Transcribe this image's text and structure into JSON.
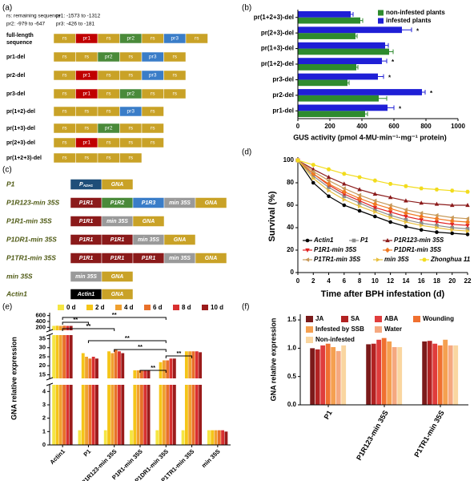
{
  "panel_labels": [
    "(a)",
    "(b)",
    "(c)",
    "(d)",
    "(e)",
    "(f)"
  ],
  "diagram_a": {
    "legend": [
      "rs: remaining sequence",
      "pr1: -1573 to -1312",
      "pr2: -979 to -647",
      "pr3: -426 to -181"
    ],
    "colors": {
      "rs": "#c9a227",
      "pr1": "#c00000",
      "pr2": "#4a8a3a",
      "pr3": "#3a7dc8"
    },
    "rows": [
      {
        "label": [
          "full-length",
          "sequence"
        ],
        "segments": [
          "rs",
          "pr1",
          "rs",
          "pr2",
          "rs",
          "pr3",
          "rs"
        ]
      },
      {
        "label": "pr1-del",
        "segments": [
          "rs",
          "rs",
          "pr2",
          "rs",
          "pr3",
          "rs"
        ]
      },
      {
        "label": "pr2-del",
        "segments": [
          "rs",
          "pr1",
          "rs",
          "rs",
          "pr3",
          "rs"
        ]
      },
      {
        "label": "pr3-del",
        "segments": [
          "rs",
          "pr1",
          "rs",
          "pr2",
          "rs",
          "rs"
        ]
      },
      {
        "label": "pr(1+2)-del",
        "segments": [
          "rs",
          "rs",
          "rs",
          "pr3",
          "rs"
        ]
      },
      {
        "label": "pr(1+3)-del",
        "segments": [
          "rs",
          "rs",
          "pr2",
          "rs",
          "rs"
        ]
      },
      {
        "label": "pr(2+3)-del",
        "segments": [
          "rs",
          "pr1",
          "rs",
          "rs",
          "rs"
        ]
      },
      {
        "label": "pr(1+2+3)-del",
        "segments": [
          "rs",
          "rs",
          "rs",
          "rs"
        ]
      }
    ]
  },
  "diagram_c": {
    "colors": {
      "GNA": "#c9a227",
      "P1R1": "#8b1a1a",
      "P1R2": "#4a8a3a",
      "P1R3": "#3a7dc8",
      "min 35S": "#9a9a9a",
      "Actin1": "#000000"
    },
    "rows": [
      {
        "label": "P1",
        "segments": [
          {
            "text": "P",
            "sub": "ADH1",
            "color": "#1f4e79"
          },
          "GNA"
        ]
      },
      {
        "label": "P1R123-min 35S",
        "segments": [
          "P1R1",
          "P1R2",
          "P1R3",
          "min 35S",
          "GNA"
        ]
      },
      {
        "label": "P1R1-min 35S",
        "segments": [
          "P1R1",
          "min 35S",
          "GNA"
        ]
      },
      {
        "label": "P1DR1-min 35S",
        "segments": [
          "P1R1",
          "P1R1",
          "min 35S",
          "GNA"
        ]
      },
      {
        "label": "P1TR1-min 35S",
        "segments": [
          "P1R1",
          "P1R1",
          "P1R1",
          "min 35S",
          "GNA"
        ]
      },
      {
        "label": "min 35S",
        "segments": [
          "min 35S",
          "GNA"
        ]
      },
      {
        "label": "Actin1",
        "segments": [
          "Actin1",
          "GNA"
        ]
      }
    ]
  },
  "chart_data": [
    {
      "type": "hbar",
      "categories": [
        "pr(1+2+3)-del",
        "pr(2+3)-del",
        "pr(1+3)-del",
        "pr(1+2)-del",
        "pr3-del",
        "pr2-del",
        "pr1-del"
      ],
      "series": [
        {
          "name": "non-infested plants",
          "color": "#2e8b2e",
          "values": [
            390,
            360,
            570,
            365,
            310,
            505,
            420
          ],
          "errors": [
            15,
            10,
            25,
            10,
            10,
            50,
            15
          ]
        },
        {
          "name": "infested plants",
          "color": "#1f1fd6",
          "values": [
            330,
            650,
            545,
            525,
            500,
            775,
            560
          ],
          "errors": [
            15,
            60,
            20,
            30,
            35,
            20,
            40
          ]
        }
      ],
      "xlim": [
        0,
        1000
      ],
      "xticks": [
        0,
        200,
        400,
        600,
        800,
        1000
      ],
      "xlabel": "GUS activity (pmol 4-MU·min⁻¹·mg⁻¹ protein)",
      "legend": "upper right",
      "annotations": [
        {
          "category": 1,
          "text": "*"
        },
        {
          "category": 3,
          "text": "*"
        },
        {
          "category": 4,
          "text": "*"
        },
        {
          "category": 5,
          "text": "*"
        },
        {
          "category": 6,
          "text": "*"
        }
      ]
    },
    {
      "type": "line",
      "x": [
        0,
        2,
        4,
        6,
        8,
        10,
        12,
        14,
        16,
        18,
        20,
        22
      ],
      "series": [
        {
          "name": "Actin1",
          "color": "#000000",
          "marker": "circle",
          "values": [
            100,
            80,
            68,
            60,
            55,
            50,
            45,
            41,
            38,
            36,
            35,
            34
          ]
        },
        {
          "name": "P1",
          "color": "#8c8c8c",
          "marker": "square",
          "values": [
            100,
            86,
            76,
            68,
            62,
            56,
            51,
            47,
            44,
            42,
            40,
            39
          ]
        },
        {
          "name": "P1R123-min 35S",
          "color": "#8b1a1a",
          "marker": "triangle-up",
          "values": [
            100,
            92,
            85,
            79,
            74,
            70,
            67,
            64,
            62,
            61,
            60,
            60
          ]
        },
        {
          "name": "P1R1-min 35S",
          "color": "#e02020",
          "marker": "triangle-down",
          "values": [
            100,
            88,
            78,
            70,
            64,
            58,
            54,
            50,
            47,
            45,
            43,
            42
          ]
        },
        {
          "name": "P1DR1-min 35S",
          "color": "#f07820",
          "marker": "diamond",
          "values": [
            100,
            88,
            79,
            72,
            66,
            61,
            57,
            53,
            50,
            48,
            46,
            45
          ]
        },
        {
          "name": "P1TR1-min 35S",
          "color": "#c89a5a",
          "marker": "triangle-left",
          "values": [
            100,
            90,
            82,
            75,
            69,
            64,
            60,
            56,
            53,
            51,
            49,
            48
          ]
        },
        {
          "name": "min 35S",
          "color": "#e8c040",
          "marker": "triangle-right",
          "values": [
            100,
            84,
            73,
            65,
            59,
            54,
            49,
            45,
            42,
            40,
            38,
            37
          ]
        },
        {
          "name": "Zhonghua 11",
          "color": "#f2dc1c",
          "marker": "hexagon",
          "values": [
            100,
            96,
            92,
            88,
            85,
            82,
            79,
            77,
            75,
            74,
            73,
            72
          ]
        }
      ],
      "xlim": [
        0,
        22
      ],
      "xticks": [
        0,
        2,
        4,
        6,
        8,
        10,
        12,
        14,
        16,
        18,
        20,
        22
      ],
      "ylim": [
        0,
        100
      ],
      "yticks": [
        0,
        20,
        40,
        60,
        80,
        100
      ],
      "xlabel": "Time after BPH infestation (d)",
      "ylabel": "Survival (%)",
      "legend": "lower left"
    },
    {
      "type": "broken_bar",
      "categories": [
        "Actin1",
        "P1",
        "P1R123-min 35S",
        "P1R1-min 35S",
        "P1DR1-min 35S",
        "P1TR1-min 35S",
        "min 35S"
      ],
      "series": [
        {
          "name": "0 d",
          "color": "#f5e642",
          "values": [
            250,
            1.1,
            1.1,
            1.1,
            1.1,
            1.1,
            1.1
          ]
        },
        {
          "name": "2 d",
          "color": "#f5c518",
          "values": [
            255,
            27,
            28,
            17.5,
            22,
            28,
            1.1
          ]
        },
        {
          "name": "4 d",
          "color": "#f0a030",
          "values": [
            250,
            25,
            27,
            17.5,
            23,
            28,
            1.1
          ]
        },
        {
          "name": "6 d",
          "color": "#e8702a",
          "values": [
            255,
            24,
            29,
            17.5,
            23,
            28,
            1.1
          ]
        },
        {
          "name": "8 d",
          "color": "#d83030",
          "values": [
            250,
            25,
            28,
            17.5,
            24,
            28,
            1.1
          ]
        },
        {
          "name": "10 d",
          "color": "#9b1b1b",
          "values": [
            250,
            24,
            27,
            17.5,
            24,
            27.5,
            1
          ]
        }
      ],
      "axis_segments": [
        {
          "ylim": [
            0,
            4.5
          ],
          "yticks": [
            0,
            1,
            2,
            3,
            4
          ]
        },
        {
          "ylim": [
            13,
            37
          ],
          "yticks": [
            15,
            20,
            25,
            30,
            35
          ]
        },
        {
          "ylim": [
            100,
            700
          ],
          "yticks": [
            200,
            400,
            600
          ]
        }
      ],
      "ylabel": "GNA relative expression",
      "legend": "top",
      "annotations": [
        {
          "from": 0,
          "to": 1,
          "text": "**"
        },
        {
          "from": 0,
          "to": 2,
          "text": "**"
        },
        {
          "from": 0,
          "to": 4,
          "text": "**"
        },
        {
          "from": 1,
          "to": 4,
          "text": "**"
        },
        {
          "from": 2,
          "to": 4,
          "text": "**"
        },
        {
          "from": 4,
          "to": 5,
          "text": "**"
        },
        {
          "from": 3,
          "to": 4,
          "text": "**"
        }
      ]
    },
    {
      "type": "bar",
      "categories": [
        "P1",
        "P1R123-min 35S",
        "P1TR1-min 35S"
      ],
      "series": [
        {
          "name": "JA",
          "color": "#7b1a1a",
          "values": [
            1.0,
            1.07,
            1.12
          ]
        },
        {
          "name": "SA",
          "color": "#b22222",
          "values": [
            0.98,
            1.08,
            1.13
          ]
        },
        {
          "name": "ABA",
          "color": "#e03c3c",
          "values": [
            1.05,
            1.15,
            1.08
          ]
        },
        {
          "name": "Wounding",
          "color": "#f07030",
          "values": [
            1.08,
            1.18,
            1.05
          ]
        },
        {
          "name": "Infested by SSB",
          "color": "#f5a050",
          "values": [
            1.02,
            1.12,
            1.15
          ]
        },
        {
          "name": "Water",
          "color": "#f5a880",
          "values": [
            0.95,
            1.02,
            1.05
          ]
        },
        {
          "name": "Non-infested",
          "color": "#fad6a0",
          "values": [
            1.05,
            1.02,
            1.05
          ]
        }
      ],
      "ylim": [
        0,
        1.6
      ],
      "yticks": [
        {
          "value": 0,
          "label": "0.0"
        },
        0.5,
        {
          "value": 1,
          "label": "1.0"
        },
        1.5
      ],
      "ylabel": "GNA relative expression",
      "legend": "upper left"
    }
  ]
}
